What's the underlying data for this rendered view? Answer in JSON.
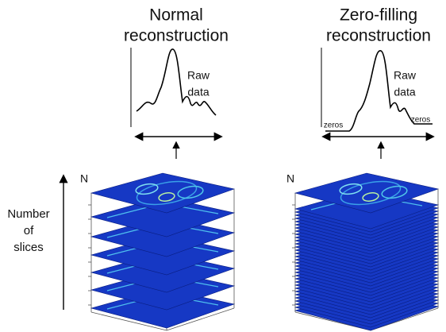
{
  "panels": [
    {
      "title": [
        "Normal",
        "reconstruction"
      ],
      "plot_label": [
        "Raw",
        "data"
      ],
      "axis_label": "N"
    },
    {
      "title": [
        "Zero-filling",
        "reconstruction"
      ],
      "plot_label": [
        "Raw",
        "data"
      ],
      "zero_labels": [
        "zeros",
        "zeros"
      ],
      "axis_label": "N"
    }
  ],
  "y_axis_label": [
    "Number",
    "of",
    "slices"
  ]
}
